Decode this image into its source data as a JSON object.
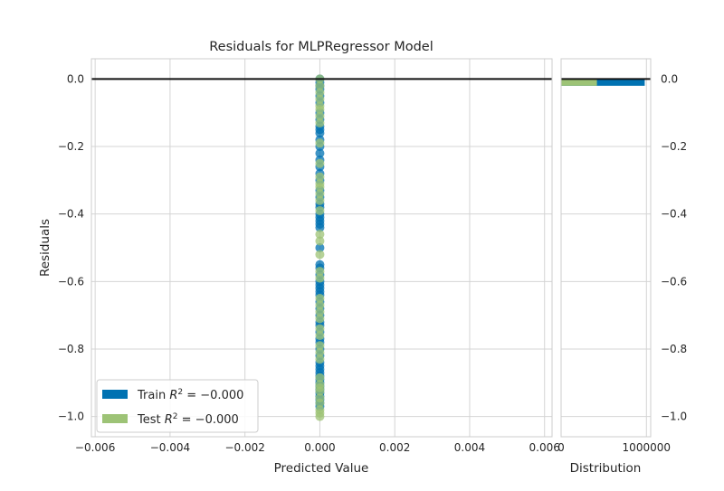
{
  "chart_data": [
    {
      "type": "scatter",
      "title": "Residuals for MLPRegressor Model",
      "xlabel": "Predicted Value",
      "ylabel": "Residuals",
      "xlim": [
        -0.0061,
        0.0062
      ],
      "ylim": [
        -1.06,
        0.06
      ],
      "xticks": [
        -0.006,
        -0.004,
        -0.002,
        0.0,
        0.002,
        0.004,
        0.006
      ],
      "xtick_labels": [
        "−0.006",
        "−0.004",
        "−0.002",
        "0.000",
        "0.002",
        "0.004",
        "0.006"
      ],
      "yticks": [
        0.0,
        -0.2,
        -0.4,
        -0.6,
        -0.8,
        -1.0
      ],
      "ytick_labels": [
        "0.0",
        "−0.2",
        "−0.4",
        "−0.6",
        "−0.8",
        "−1.0"
      ],
      "grid": true,
      "reference_line_y": 0,
      "legend_position": "lower-left",
      "series": [
        {
          "name": "Train R² = −0.000",
          "legend_label": "Train",
          "legend_r2": "R",
          "legend_sup": "2",
          "legend_eq": " = −0.000",
          "color": "#0072b2",
          "x": [
            0,
            0,
            0,
            0,
            0,
            0,
            0,
            0,
            0,
            0,
            0,
            0,
            0,
            0,
            0,
            0,
            0,
            0,
            0,
            0,
            0,
            0,
            0,
            0,
            0,
            0,
            0,
            0,
            0,
            0,
            0,
            0,
            0,
            0,
            0,
            0,
            0,
            0,
            0,
            0,
            0,
            0,
            0,
            0,
            0,
            0,
            0,
            0,
            0,
            0,
            0,
            0,
            0,
            0,
            0,
            0,
            0,
            0,
            0,
            0
          ],
          "y": [
            0,
            -0.01,
            -0.02,
            -0.03,
            -0.05,
            -0.07,
            -0.1,
            -0.12,
            -0.14,
            -0.15,
            -0.16,
            -0.18,
            -0.2,
            -0.22,
            -0.24,
            -0.26,
            -0.28,
            -0.3,
            -0.33,
            -0.35,
            -0.37,
            -0.38,
            -0.4,
            -0.41,
            -0.42,
            -0.43,
            -0.44,
            -0.5,
            -0.55,
            -0.56,
            -0.58,
            -0.6,
            -0.61,
            -0.62,
            -0.63,
            -0.64,
            -0.66,
            -0.68,
            -0.7,
            -0.72,
            -0.73,
            -0.75,
            -0.77,
            -0.78,
            -0.8,
            -0.82,
            -0.84,
            -0.85,
            -0.86,
            -0.87,
            -0.88,
            -0.89,
            -0.9,
            -0.91,
            -0.92,
            -0.93,
            -0.94,
            -0.95,
            -0.96,
            -0.97
          ]
        },
        {
          "name": "Test R² = −0.000",
          "legend_label": "Test",
          "legend_r2": "R",
          "legend_sup": "2",
          "legend_eq": " = −0.000",
          "color": "#9dc376",
          "x": [
            0,
            0,
            0,
            0,
            0,
            0,
            0,
            0,
            0,
            0,
            0,
            0,
            0,
            0,
            0,
            0,
            0,
            0,
            0,
            0,
            0,
            0,
            0,
            0,
            0,
            0,
            0,
            0,
            0,
            0,
            0,
            0,
            0,
            0,
            0,
            0,
            0,
            0,
            0
          ],
          "y": [
            0,
            -0.02,
            -0.04,
            -0.06,
            -0.08,
            -0.09,
            -0.11,
            -0.13,
            -0.19,
            -0.25,
            -0.29,
            -0.31,
            -0.32,
            -0.34,
            -0.36,
            -0.39,
            -0.46,
            -0.48,
            -0.52,
            -0.57,
            -0.59,
            -0.65,
            -0.67,
            -0.69,
            -0.71,
            -0.74,
            -0.76,
            -0.79,
            -0.81,
            -0.83,
            -0.885,
            -0.905,
            -0.915,
            -0.925,
            -0.945,
            -0.96,
            -0.98,
            -0.99,
            -1.0
          ]
        }
      ]
    },
    {
      "type": "bar",
      "orientation": "horizontal",
      "xlabel": "Distribution",
      "xticks": [
        0,
        1000000
      ],
      "xtick_labels": [
        "0",
        "1000000"
      ],
      "xlim": [
        0,
        1050000
      ],
      "ylim": [
        -1.06,
        0.06
      ],
      "yticks": [
        0.0,
        -0.2,
        -0.4,
        -0.6,
        -0.8,
        -1.0
      ],
      "ytick_labels": [
        "0.0",
        "−0.2",
        "−0.4",
        "−0.6",
        "−0.8",
        "−1.0"
      ],
      "grid": true,
      "reference_line_y": 0,
      "bin": [
        -0.02,
        0.0
      ],
      "series": [
        {
          "name": "Train",
          "color": "#0072b2",
          "values": [
            980000
          ]
        },
        {
          "name": "Test",
          "color": "#9dc376",
          "values": [
            420000
          ]
        }
      ]
    }
  ]
}
